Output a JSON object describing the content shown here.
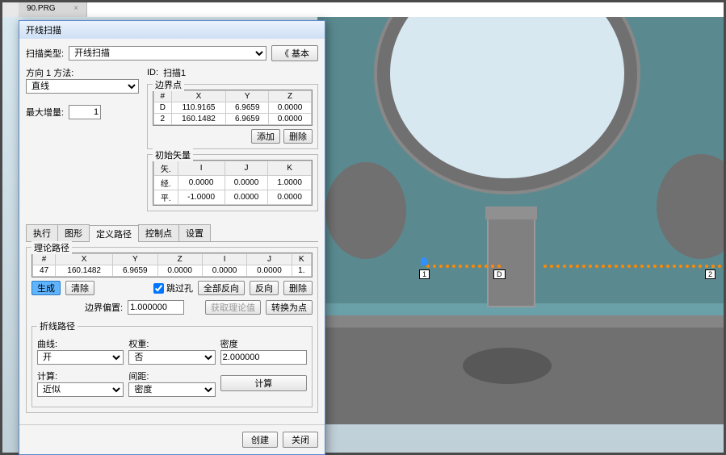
{
  "file_tab": {
    "name": "90.PRG",
    "close": "×"
  },
  "dialog": {
    "title": "开线扫描",
    "scan_type_label": "扫描类型:",
    "scan_type_value": "开线扫描",
    "basic_btn": "《  基本",
    "dir_method_label": "方向 1 方法:",
    "dir_method_value": "直线",
    "id_label": "ID:",
    "id_value": "扫描1",
    "max_inc_label": "最大增量:",
    "max_inc_value": "1",
    "boundary": {
      "legend": "边界点",
      "headers": [
        "#",
        "X",
        "Y",
        "Z"
      ],
      "rows": [
        [
          "D",
          "110.9165",
          "6.9659",
          "0.0000"
        ],
        [
          "2",
          "160.1482",
          "6.9659",
          "0.0000"
        ]
      ],
      "add": "添加",
      "del": "删除"
    },
    "init_vec": {
      "legend": "初始矢量",
      "headers": [
        "矢.",
        "I",
        "J",
        "K"
      ],
      "rows": [
        [
          "经.",
          "0.0000",
          "0.0000",
          "1.0000"
        ],
        [
          "平.",
          "-1.0000",
          "0.0000",
          "0.0000"
        ]
      ]
    },
    "tabs": {
      "exec": "执行",
      "graph": "图形",
      "def": "定义路径",
      "ctrl": "控制点",
      "set": "设置"
    },
    "theo": {
      "legend": "理论路径",
      "headers": [
        "#",
        "X",
        "Y",
        "Z",
        "I",
        "J",
        "K"
      ],
      "rows": [
        [
          "47",
          "160.1482",
          "6.9659",
          "0.0000",
          "0.0000",
          "0.0000",
          "1."
        ]
      ],
      "gen": "生成",
      "clear": "清除",
      "skip_label": "跳过孔",
      "skip_checked": true,
      "all_rev": "全部反向",
      "rev": "反向",
      "del": "删除",
      "bd_off_label": "边界偏置:",
      "bd_off_value": "1.000000",
      "get_theo": "获取理论值",
      "to_pts": "转换为点"
    },
    "polyline": {
      "legend": "折线路径",
      "curve_label": "曲线:",
      "curve_value": "开",
      "weight_label": "权重:",
      "weight_value": "否",
      "density_label": "密度",
      "density_value": "2.000000",
      "calc_label": "计算:",
      "calc_value": "近似",
      "dist_label": "间距:",
      "dist_value": "密度",
      "calc_btn": "计算"
    },
    "footer": {
      "create": "创建",
      "close": "关闭"
    }
  },
  "markers": {
    "m1": "1",
    "mD": "D",
    "m2": "2"
  }
}
